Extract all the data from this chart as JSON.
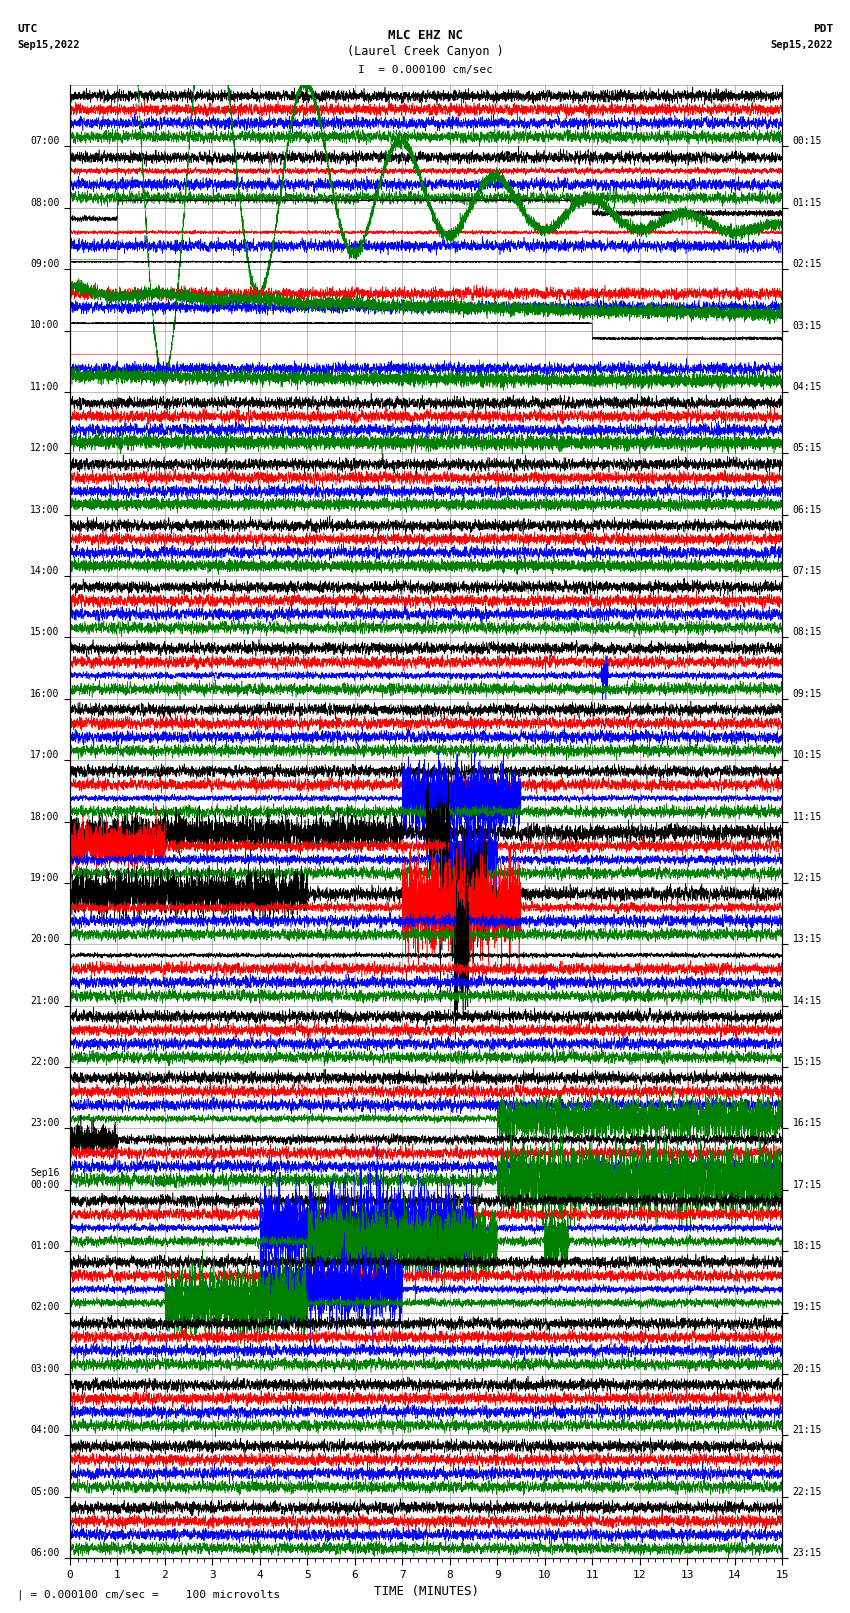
{
  "title_line1": "MLC EHZ NC",
  "title_line2": "(Laurel Creek Canyon )",
  "scale_label": "= 0.000100 cm/sec",
  "footer_label": "\\u2551 = 0.000100 cm/sec =    100 microvolts",
  "xlabel": "TIME (MINUTES)",
  "left_times": [
    "07:00",
    "08:00",
    "09:00",
    "10:00",
    "11:00",
    "12:00",
    "13:00",
    "14:00",
    "15:00",
    "16:00",
    "17:00",
    "18:00",
    "19:00",
    "20:00",
    "21:00",
    "22:00",
    "23:00",
    "Sep16\n00:00",
    "01:00",
    "02:00",
    "03:00",
    "04:00",
    "05:00",
    "06:00"
  ],
  "right_times": [
    "00:15",
    "01:15",
    "02:15",
    "03:15",
    "04:15",
    "05:15",
    "06:15",
    "07:15",
    "08:15",
    "09:15",
    "10:15",
    "11:15",
    "12:15",
    "13:15",
    "14:15",
    "15:15",
    "16:15",
    "17:15",
    "18:15",
    "19:15",
    "20:15",
    "21:15",
    "22:15",
    "23:15"
  ],
  "num_rows": 24,
  "minutes": 15,
  "bg_color": "#ffffff",
  "grid_color": "#888888",
  "trace_colors": [
    "#000000",
    "#ff0000",
    "#0000ff",
    "#008000"
  ],
  "line_width": 0.4,
  "figwidth": 8.5,
  "figheight": 16.13,
  "dpi": 100
}
